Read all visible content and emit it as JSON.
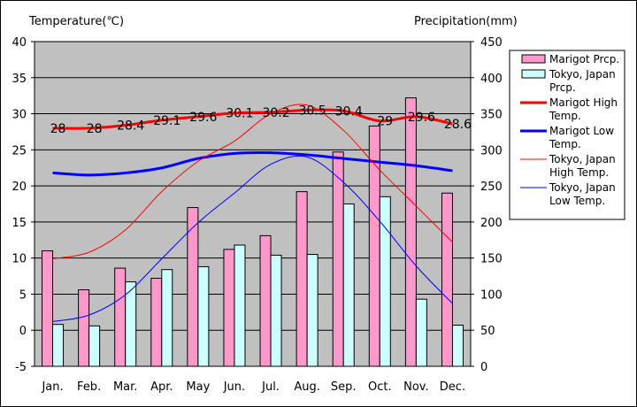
{
  "chart_data": {
    "type": "bar",
    "categories": [
      "Jan.",
      "Feb.",
      "Mar.",
      "Apr.",
      "May",
      "Jun.",
      "Jul.",
      "Aug.",
      "Sep.",
      "Oct.",
      "Nov.",
      "Dec."
    ],
    "y_left": {
      "label": "Temperature(℃)",
      "min": -5,
      "max": 40,
      "ticks": [
        -5,
        0,
        5,
        10,
        15,
        20,
        25,
        30,
        35,
        40
      ]
    },
    "y_right": {
      "label": "Precipitation(mm)",
      "min": 0,
      "max": 450,
      "ticks": [
        0,
        50,
        100,
        150,
        200,
        250,
        300,
        350,
        400,
        450
      ]
    },
    "grid": true,
    "legend_position": "right",
    "series": [
      {
        "name": "Marigot Prcp.",
        "kind": "bar",
        "axis": "right",
        "color": "#ff99cc",
        "values": [
          160,
          106,
          136,
          122,
          220,
          162,
          181,
          242,
          297,
          333,
          372,
          240
        ]
      },
      {
        "name": "Tokyo, Japan Prcp.",
        "kind": "bar",
        "axis": "right",
        "color": "#ccffff",
        "values": [
          58,
          56,
          117,
          134,
          138,
          168,
          154,
          155,
          225,
          235,
          93,
          57
        ]
      },
      {
        "name": "Marigot High Temp.",
        "kind": "line",
        "axis": "left",
        "color": "#ff0000",
        "width": 3,
        "values": [
          28,
          28,
          28.4,
          29.1,
          29.6,
          30.1,
          30.2,
          30.5,
          30.4,
          29,
          29.6,
          28.6
        ],
        "labels": [
          "28",
          "28",
          "28.4",
          "29.1",
          "29.6",
          "30.1",
          "30.2",
          "30.5",
          "30.4",
          "29",
          "29.6",
          "28.6"
        ]
      },
      {
        "name": "Marigot Low Temp.",
        "kind": "line",
        "axis": "left",
        "color": "#0000ff",
        "width": 3,
        "values": [
          21.8,
          21.5,
          21.8,
          22.5,
          23.8,
          24.5,
          24.6,
          24.3,
          23.8,
          23.3,
          22.8,
          22.1
        ]
      },
      {
        "name": "Tokyo, Japan High Temp.",
        "kind": "line",
        "axis": "left",
        "color": "#ff0000",
        "width": 1,
        "values": [
          9.9,
          10.8,
          13.9,
          19.2,
          23.4,
          26.2,
          30.0,
          31.2,
          27.7,
          22.2,
          17.2,
          12.2
        ]
      },
      {
        "name": "Tokyo, Japan Low Temp.",
        "kind": "line",
        "axis": "left",
        "color": "#0000ff",
        "width": 1,
        "values": [
          1.2,
          2.1,
          4.9,
          9.9,
          14.9,
          19.0,
          23.0,
          24.0,
          20.5,
          15.1,
          8.9,
          3.7
        ]
      }
    ],
    "legend": [
      {
        "text": "Marigot Prcp.",
        "kind": "bar",
        "color": "#ff99cc"
      },
      {
        "text": "Tokyo, Japan Prcp.",
        "kind": "bar",
        "color": "#ccffff"
      },
      {
        "text": "Marigot High Temp.",
        "kind": "line",
        "color": "#ff0000",
        "width": 3
      },
      {
        "text": "Marigot Low Temp.",
        "kind": "line",
        "color": "#0000ff",
        "width": 3
      },
      {
        "text": "Tokyo, Japan High Temp.",
        "kind": "line",
        "color": "#ff0000",
        "width": 1
      },
      {
        "text": "Tokyo, Japan Low Temp.",
        "kind": "line",
        "color": "#0000ff",
        "width": 1
      }
    ]
  }
}
